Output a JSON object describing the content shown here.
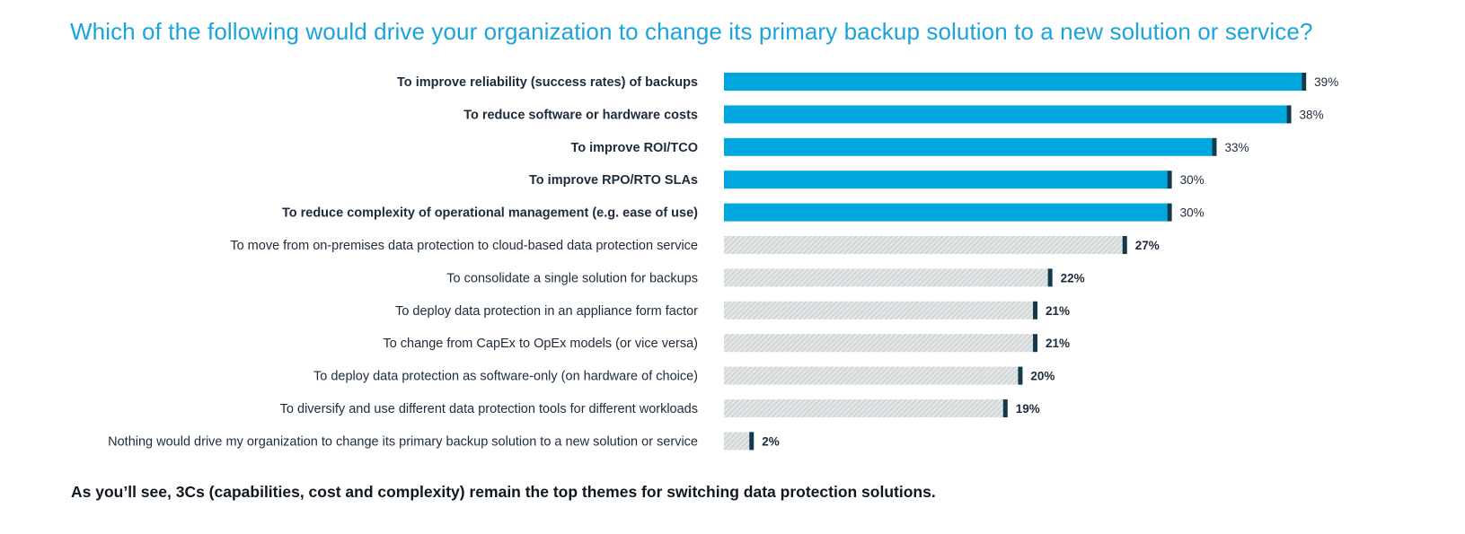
{
  "title": "Which of the following would drive your organization to change its primary backup solution to a new solution or service?",
  "footnote": "As you’ll see, 3Cs (capabilities, cost and complexity) remain the top themes for switching data protection solutions.",
  "colors": {
    "title": "#1ba3dc",
    "highlight_bar": "#00a7de",
    "muted_bar": "#d6dadb",
    "bar_cap": "#123a4a",
    "text": "#1e2b3a"
  },
  "chart_data": {
    "type": "bar",
    "orientation": "horizontal",
    "title": "Which of the following would drive your organization to change its primary backup solution to a new solution or service?",
    "xlim": [
      0,
      40
    ],
    "unit": "%",
    "highlight_count": 5,
    "categories": [
      "To improve reliability (success rates) of backups",
      "To reduce software or hardware costs",
      "To improve ROI/TCO",
      "To improve RPO/RTO SLAs",
      "To reduce complexity of operational management (e.g. ease of use)",
      "To move from on-premises data protection to cloud-based data protection service",
      "To consolidate a single solution for backups",
      "To deploy data protection in an appliance form factor",
      "To change from CapEx to OpEx models (or vice versa)",
      "To deploy data protection as software-only (on hardware of choice)",
      "To diversify and use different data protection tools for different workloads",
      "Nothing would drive my organization to change its primary backup solution to a new solution or service"
    ],
    "values": [
      39,
      38,
      33,
      30,
      30,
      27,
      22,
      21,
      21,
      20,
      19,
      2
    ],
    "value_labels": [
      "39%",
      "38%",
      "33%",
      "30%",
      "30%",
      "27%",
      "22%",
      "21%",
      "21%",
      "20%",
      "19%",
      "2%"
    ]
  }
}
